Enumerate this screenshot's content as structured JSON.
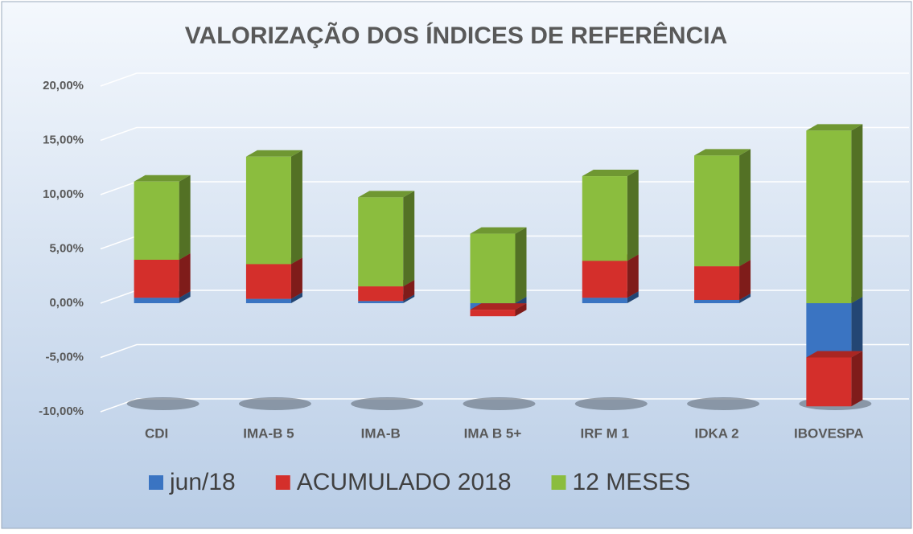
{
  "chart_data": {
    "type": "bar3d_stacked",
    "title": "VALORIZAÇÃO DOS ÍNDICES DE REFERÊNCIA",
    "categories": [
      "CDI",
      "IMA-B 5",
      "IMA-B",
      "IMA B 5+",
      "IRF M 1",
      "IDKA 2",
      "IBOVESPA"
    ],
    "series": [
      {
        "name": "jun/18",
        "color": "#3a74c2",
        "values": [
          0.5,
          0.4,
          0.2,
          -0.6,
          0.5,
          0.3,
          -5.0
        ]
      },
      {
        "name": "ACUMULADO 2018",
        "color": "#d42f2b",
        "values": [
          3.5,
          3.2,
          1.35,
          -0.6,
          3.4,
          3.1,
          -4.5
        ]
      },
      {
        "name": "12 MESES",
        "color": "#8bbd3e",
        "values": [
          7.2,
          9.9,
          8.2,
          6.4,
          7.8,
          10.2,
          15.9
        ]
      }
    ],
    "ylim": [
      -10,
      20
    ],
    "yticks": [
      {
        "value": -10,
        "label": "-10,00%"
      },
      {
        "value": -5,
        "label": "-5,00%"
      },
      {
        "value": 0,
        "label": "0,00%"
      },
      {
        "value": 5,
        "label": "5,00%"
      },
      {
        "value": 10,
        "label": "10,00%"
      },
      {
        "value": 15,
        "label": "15,00%"
      },
      {
        "value": 20,
        "label": "20,00%"
      }
    ],
    "grid": true,
    "legend": "bottom"
  }
}
